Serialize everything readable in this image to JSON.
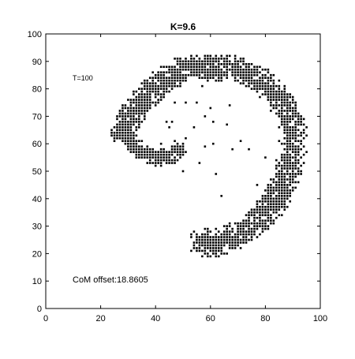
{
  "chart_data": {
    "type": "scatter",
    "title": "K=9.6",
    "xlabel": "",
    "ylabel": "",
    "xlim": [
      0,
      100
    ],
    "ylim": [
      0,
      100
    ],
    "xticks": [
      0,
      20,
      40,
      60,
      80,
      100
    ],
    "yticks": [
      0,
      10,
      20,
      30,
      40,
      50,
      60,
      70,
      80,
      90,
      100
    ],
    "xtick_labels": [
      "0",
      "20",
      "40",
      "60",
      "80",
      "100"
    ],
    "ytick_labels": [
      "0",
      "10",
      "20",
      "30",
      "40",
      "50",
      "60",
      "70",
      "80",
      "90",
      "100"
    ],
    "grid": false,
    "marker_color": "#000000",
    "annotations": {
      "time": "T=100",
      "offset": "CoM offset:18.8605"
    },
    "spiral_bands": [
      [
        [
          28,
          64
        ],
        [
          32,
          59
        ],
        [
          38,
          55
        ],
        [
          45,
          55
        ],
        [
          48,
          58
        ]
      ],
      [
        [
          28,
          64
        ],
        [
          33,
          73
        ],
        [
          40,
          81
        ],
        [
          50,
          87
        ],
        [
          60,
          88
        ],
        [
          70,
          87
        ],
        [
          80,
          82
        ],
        [
          86,
          75
        ],
        [
          90,
          66
        ],
        [
          90,
          57
        ],
        [
          87,
          46
        ],
        [
          83,
          38
        ],
        [
          77,
          32
        ],
        [
          70,
          27
        ],
        [
          63,
          24
        ],
        [
          57,
          24
        ]
      ]
    ],
    "band_width": [
      7,
      10
    ],
    "scattered_points": [
      [
        44,
        68
      ],
      [
        46,
        68
      ],
      [
        45,
        66
      ],
      [
        47,
        75
      ],
      [
        37,
        72
      ],
      [
        34,
        71
      ],
      [
        44,
        82
      ],
      [
        57,
        81
      ],
      [
        55,
        75
      ],
      [
        58,
        70
      ],
      [
        51,
        62
      ],
      [
        58,
        59
      ],
      [
        51,
        75
      ],
      [
        66,
        67
      ],
      [
        61,
        60
      ],
      [
        64,
        41
      ],
      [
        79,
        41
      ],
      [
        77,
        45
      ],
      [
        71,
        61
      ],
      [
        68,
        58
      ],
      [
        74,
        58
      ],
      [
        80,
        55
      ],
      [
        78,
        80
      ],
      [
        71,
        82
      ],
      [
        62,
        49
      ],
      [
        56,
        53
      ],
      [
        60,
        73
      ],
      [
        54,
        66
      ],
      [
        42,
        60
      ],
      [
        50,
        50
      ],
      [
        46,
        59
      ],
      [
        61,
        68
      ],
      [
        67,
        74
      ]
    ]
  }
}
